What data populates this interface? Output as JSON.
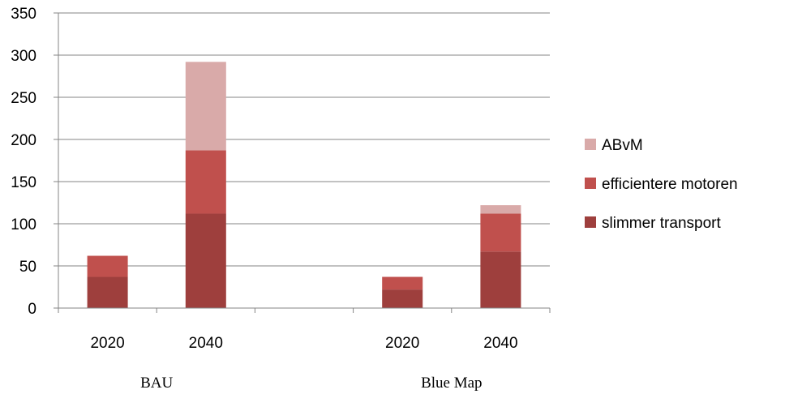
{
  "chart_data": {
    "type": "bar",
    "stacked": true,
    "ylim": [
      0,
      350
    ],
    "yticks": [
      0,
      50,
      100,
      150,
      200,
      250,
      300,
      350
    ],
    "grid": true,
    "legend_position": "right",
    "groups": [
      {
        "label": "BAU",
        "categories": [
          "2020",
          "2040"
        ]
      },
      {
        "label": "",
        "categories": [
          ""
        ]
      },
      {
        "label": "Blue Map",
        "categories": [
          "2020",
          "2040"
        ]
      }
    ],
    "categories": [
      "2020",
      "2040",
      "",
      "2020",
      "2040"
    ],
    "series": [
      {
        "name": "slimmer transport",
        "color": "#9e3f3d",
        "values": [
          37,
          112,
          0,
          22,
          67
        ]
      },
      {
        "name": "efficientere motoren",
        "color": "#c0504d",
        "values": [
          25,
          75,
          0,
          15,
          45
        ]
      },
      {
        "name": "ABvM",
        "color": "#d9aaa9",
        "values": [
          0,
          105,
          0,
          0,
          10
        ]
      }
    ],
    "legend_order": [
      "ABvM",
      "efficientere motoren",
      "slimmer transport"
    ]
  }
}
